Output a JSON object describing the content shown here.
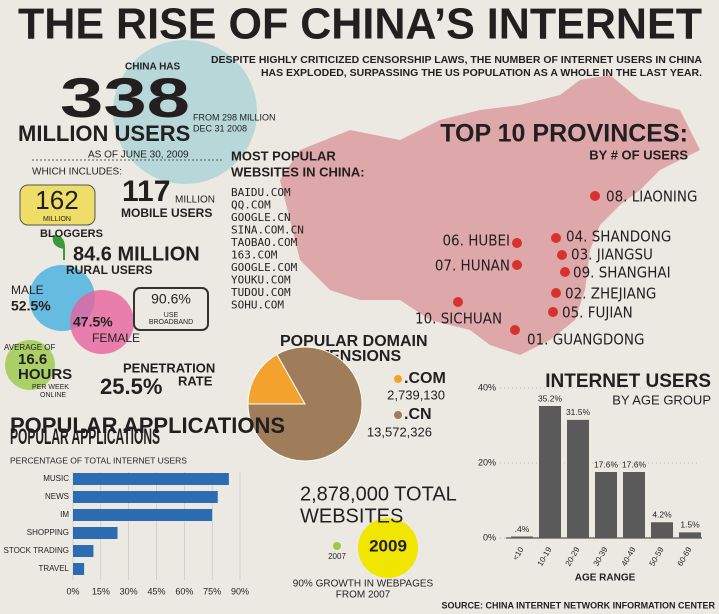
{
  "header": {
    "title": "THE RISE OF CHINA’S INTERNET",
    "subtitle": [
      "DESPITE HIGHLY CRITICIZED CENSORSHIP LAWS, THE NUMBER OF INTERNET USERS IN CHINA",
      "HAS EXPLODED, SURPASSING THE US POPULATION AS A WHOLE IN THE LAST YEAR."
    ]
  },
  "users": {
    "lead": "CHINA HAS",
    "count": "338",
    "unit": "MILLION USERS",
    "date": "AS OF JUNE 30, 2009",
    "previous": [
      "FROM 298 MILLION",
      "DEC 31 2008"
    ]
  },
  "includes": "WHICH INCLUDES:",
  "bloggers": {
    "count": "162",
    "unit": "MILLION",
    "label": "BLOGGERS"
  },
  "mobile": {
    "count": "117",
    "unit": "MILLION",
    "label": "MOBILE USERS"
  },
  "rural": {
    "count": "84.6 MILLION",
    "label": "RURAL USERS"
  },
  "gender": {
    "male_label": "MALE",
    "male": "52.5%",
    "female": "47.5%",
    "female_label": "FEMALE"
  },
  "broadband": {
    "value": "90.6%",
    "label": [
      "USE",
      "BROADBAND"
    ]
  },
  "hours": {
    "lead": "AVERAGE OF",
    "value": [
      "16.6",
      "HOURS"
    ],
    "unit": [
      "PER WEEK",
      "ONLINE"
    ]
  },
  "penetration": {
    "label": [
      "PENETRATION",
      "RATE"
    ],
    "value": "25.5%"
  },
  "websites": {
    "title": [
      "MOST POPULAR",
      "WEBSITES IN CHINA:"
    ],
    "list": [
      "BAIDU.COM",
      "QQ.COM",
      "GOOGLE.CN",
      "SINA.COM.CN",
      "TAOBAO.COM",
      "163.COM",
      "GOOGLE.COM",
      "YOUKU.COM",
      "TUDOU.COM",
      "SOHU.COM"
    ]
  },
  "provinces": {
    "title": "TOP 10 PROVINCES:",
    "subtitle": "BY # OF USERS",
    "list": [
      "08. LIAONING",
      "04. SHANDONG",
      "06. HUBEI",
      "03. JIANGSU",
      "07. HUNAN",
      "09. SHANGHAI",
      "02. ZHEJIANG",
      "10. SICHUAN",
      "05. FUJIAN",
      "01. GUANGDONG"
    ]
  },
  "growth": {
    "total": [
      "2,878,000 TOTAL",
      "WEBSITES"
    ],
    "from_year": "2007",
    "to_year": "2009",
    "note": [
      "90% GROWTH IN WEBPAGES",
      "FROM 2007"
    ]
  },
  "source": "SOURCE: CHINA INTERNET NETWORK INFORMATION CENTER",
  "chart_data": [
    {
      "type": "pie",
      "title": [
        "POPULAR DOMAIN",
        "EXTENSIONS"
      ],
      "categories": [
        ".COM",
        ".CN"
      ],
      "values": [
        2739130,
        13572326
      ],
      "value_labels": [
        "2,739,130",
        "13,572,326"
      ],
      "colors": [
        "#f4a22e",
        "#a07d5a"
      ]
    },
    {
      "type": "bar",
      "orientation": "horizontal",
      "title": "POPULAR APPLICATIONS",
      "subtitle": "PERCENTAGE OF TOTAL INTERNET USERS",
      "categories": [
        "MUSIC",
        "NEWS",
        "IM",
        "SHOPPING",
        "STOCK TRADING",
        "TRAVEL"
      ],
      "values": [
        84,
        78,
        75,
        24,
        11,
        6
      ],
      "color": "#2b6cb3",
      "xlim": [
        0,
        90
      ],
      "xticks": [
        {
          "value": 0,
          "label": "0%"
        },
        {
          "value": 15,
          "label": "15%"
        },
        {
          "value": 30,
          "label": "30%"
        },
        {
          "value": 45,
          "label": "45%"
        },
        {
          "value": 60,
          "label": "60%"
        },
        {
          "value": 75,
          "label": "75%"
        },
        {
          "value": 90,
          "label": "90%"
        }
      ]
    },
    {
      "type": "bar",
      "orientation": "vertical",
      "title": "INTERNET USERS",
      "subtitle": "BY AGE GROUP",
      "xlabel": "AGE RANGE",
      "categories": [
        "<10",
        "10-19",
        "20-29",
        "30-39",
        "40-49",
        "50-59",
        "60-69"
      ],
      "values": [
        0.4,
        35.2,
        31.5,
        17.6,
        17.6,
        4.2,
        1.5
      ],
      "value_labels": [
        ".4%",
        "35.2%",
        "31.5%",
        "17.6%",
        "17.6%",
        "4.2%",
        "1.5%"
      ],
      "color": "#5a5a5a",
      "ylim": [
        0,
        40
      ],
      "yticks": [
        {
          "value": 0,
          "label": "0%"
        },
        {
          "value": 20,
          "label": "20%"
        },
        {
          "value": 40,
          "label": "40%"
        }
      ]
    }
  ]
}
